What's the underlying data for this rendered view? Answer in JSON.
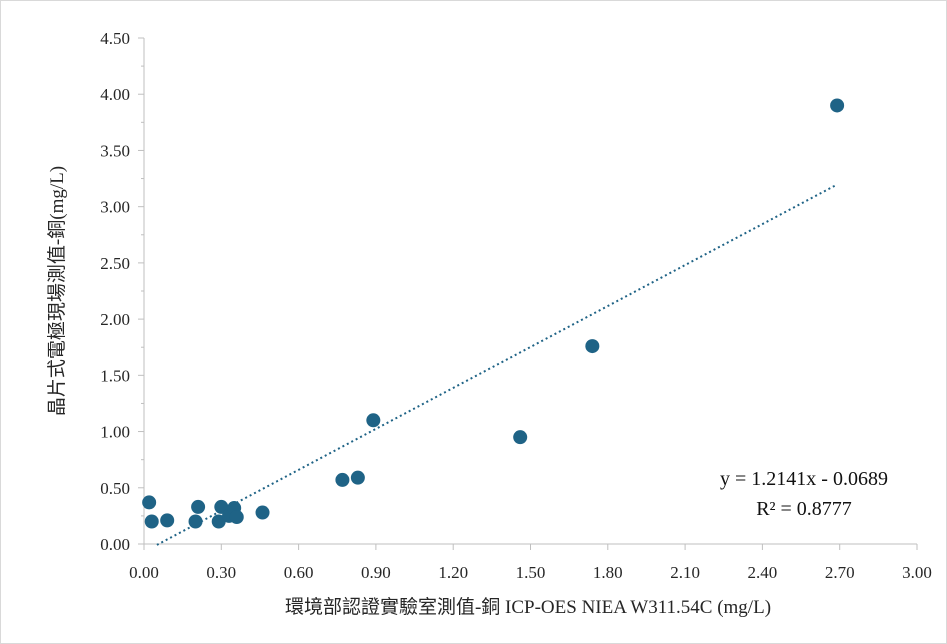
{
  "chart_data": {
    "type": "scatter",
    "xlabel": "環境部認證實驗室測值-銅 ICP-OES NIEA W311.54C (mg/L)",
    "ylabel": "晶片式電極現場測值-銅(mg/L)",
    "xlim": [
      0,
      3.0
    ],
    "ylim": [
      0,
      4.5
    ],
    "x_ticks": [
      "0.00",
      "0.30",
      "0.60",
      "0.90",
      "1.20",
      "1.50",
      "1.80",
      "2.10",
      "2.40",
      "2.70",
      "3.00"
    ],
    "y_ticks": [
      "0.00",
      "0.50",
      "1.00",
      "1.50",
      "2.00",
      "2.50",
      "3.00",
      "3.50",
      "4.00",
      "4.50"
    ],
    "grid": false,
    "marker_color": "#1f6386",
    "trendline_color": "#1f6386",
    "series": [
      {
        "points": [
          {
            "x": 0.02,
            "y": 0.37
          },
          {
            "x": 0.03,
            "y": 0.2
          },
          {
            "x": 0.09,
            "y": 0.21
          },
          {
            "x": 0.2,
            "y": 0.2
          },
          {
            "x": 0.21,
            "y": 0.33
          },
          {
            "x": 0.29,
            "y": 0.2
          },
          {
            "x": 0.3,
            "y": 0.33
          },
          {
            "x": 0.33,
            "y": 0.25
          },
          {
            "x": 0.35,
            "y": 0.32
          },
          {
            "x": 0.36,
            "y": 0.24
          },
          {
            "x": 0.46,
            "y": 0.28
          },
          {
            "x": 0.77,
            "y": 0.57
          },
          {
            "x": 0.83,
            "y": 0.59
          },
          {
            "x": 0.89,
            "y": 1.1
          },
          {
            "x": 1.46,
            "y": 0.95
          },
          {
            "x": 1.74,
            "y": 1.76
          },
          {
            "x": 2.69,
            "y": 3.9
          }
        ]
      }
    ],
    "trendline": {
      "slope": 1.2141,
      "intercept": -0.0689,
      "x_range": [
        0.05,
        2.69
      ]
    },
    "annotations": {
      "equation": "y = 1.2141x - 0.0689",
      "r_squared": "R² = 0.8777"
    }
  }
}
